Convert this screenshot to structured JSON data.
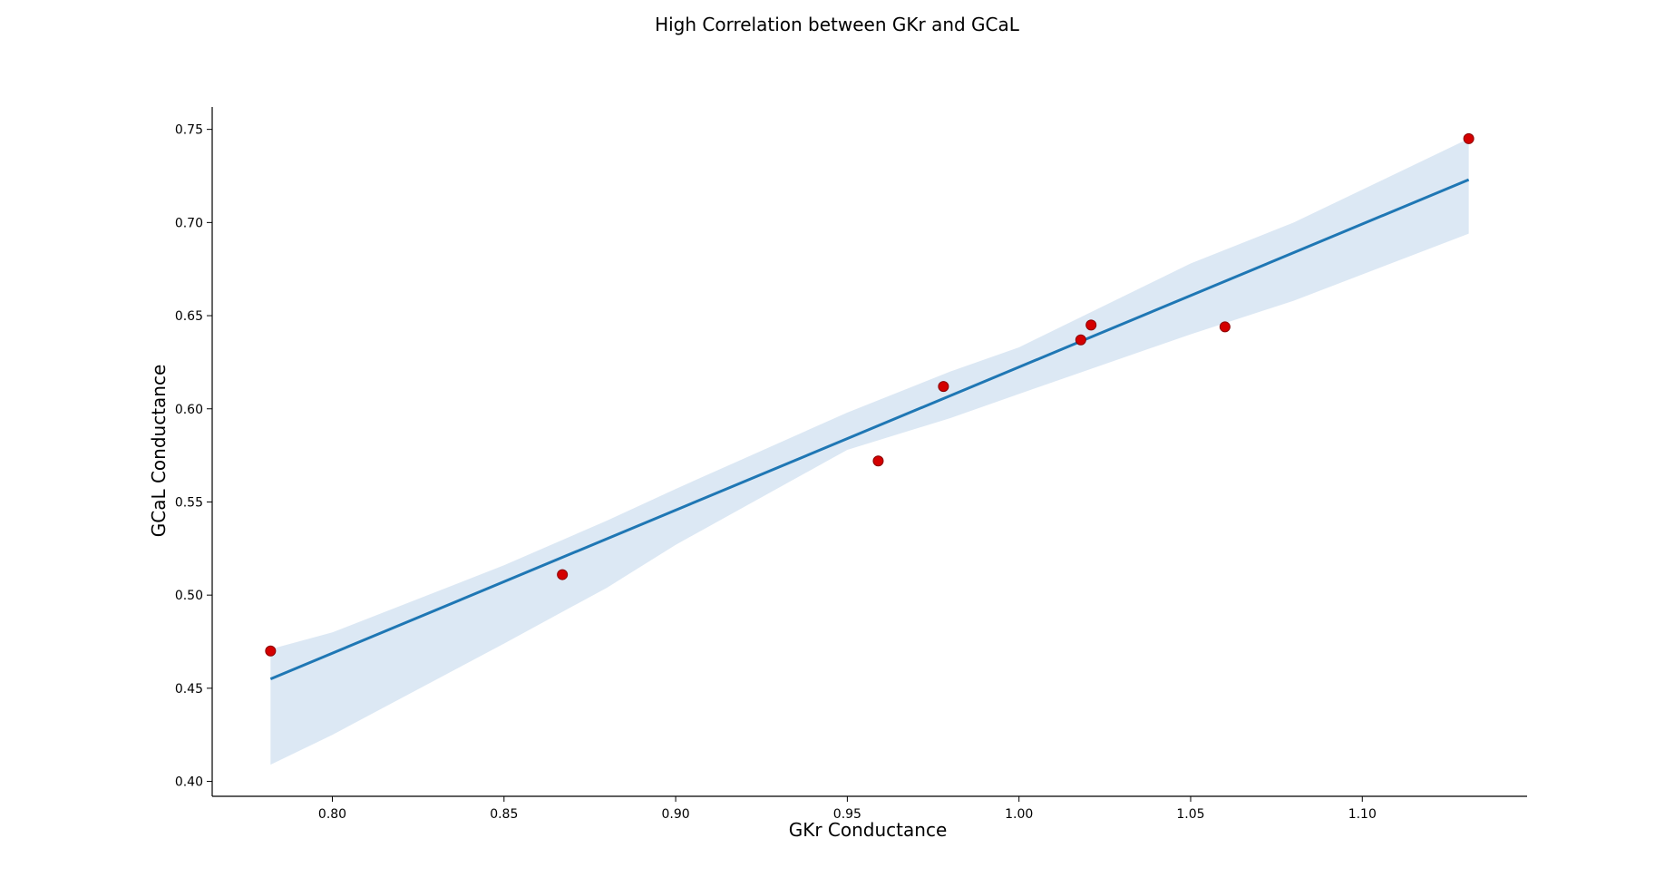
{
  "chart_data": {
    "type": "scatter",
    "title": "High Correlation between GKr and GCaL",
    "xlabel": "GKr Conductance",
    "ylabel": "GCaL Conductance",
    "xlim": [
      0.765,
      1.148
    ],
    "ylim": [
      0.392,
      0.762
    ],
    "x_ticks": [
      "0.80",
      "0.85",
      "0.90",
      "0.95",
      "1.00",
      "1.05",
      "1.10"
    ],
    "y_ticks": [
      "0.40",
      "0.45",
      "0.50",
      "0.55",
      "0.60",
      "0.65",
      "0.70",
      "0.75"
    ],
    "grid": false,
    "legend": "none",
    "points": [
      {
        "x": 0.782,
        "y": 0.47
      },
      {
        "x": 0.867,
        "y": 0.511
      },
      {
        "x": 0.959,
        "y": 0.572
      },
      {
        "x": 0.978,
        "y": 0.612
      },
      {
        "x": 1.018,
        "y": 0.637
      },
      {
        "x": 1.021,
        "y": 0.645
      },
      {
        "x": 1.06,
        "y": 0.644
      },
      {
        "x": 1.131,
        "y": 0.745
      }
    ],
    "regression_line": {
      "x": [
        0.782,
        1.131
      ],
      "y": [
        0.455,
        0.723
      ]
    },
    "confidence_band": {
      "x": [
        0.782,
        0.8,
        0.85,
        0.88,
        0.9,
        0.95,
        0.98,
        1.0,
        1.05,
        1.08,
        1.131
      ],
      "upper": [
        0.471,
        0.48,
        0.516,
        0.54,
        0.557,
        0.598,
        0.62,
        0.633,
        0.678,
        0.7,
        0.745
      ],
      "lower": [
        0.409,
        0.425,
        0.474,
        0.504,
        0.527,
        0.578,
        0.595,
        0.608,
        0.64,
        0.658,
        0.694
      ]
    },
    "colors": {
      "line": "#1f77b4",
      "band": "#dce8f4",
      "point_fill": "#d40000",
      "point_edge": "#8b0000",
      "axis": "#000000"
    }
  }
}
